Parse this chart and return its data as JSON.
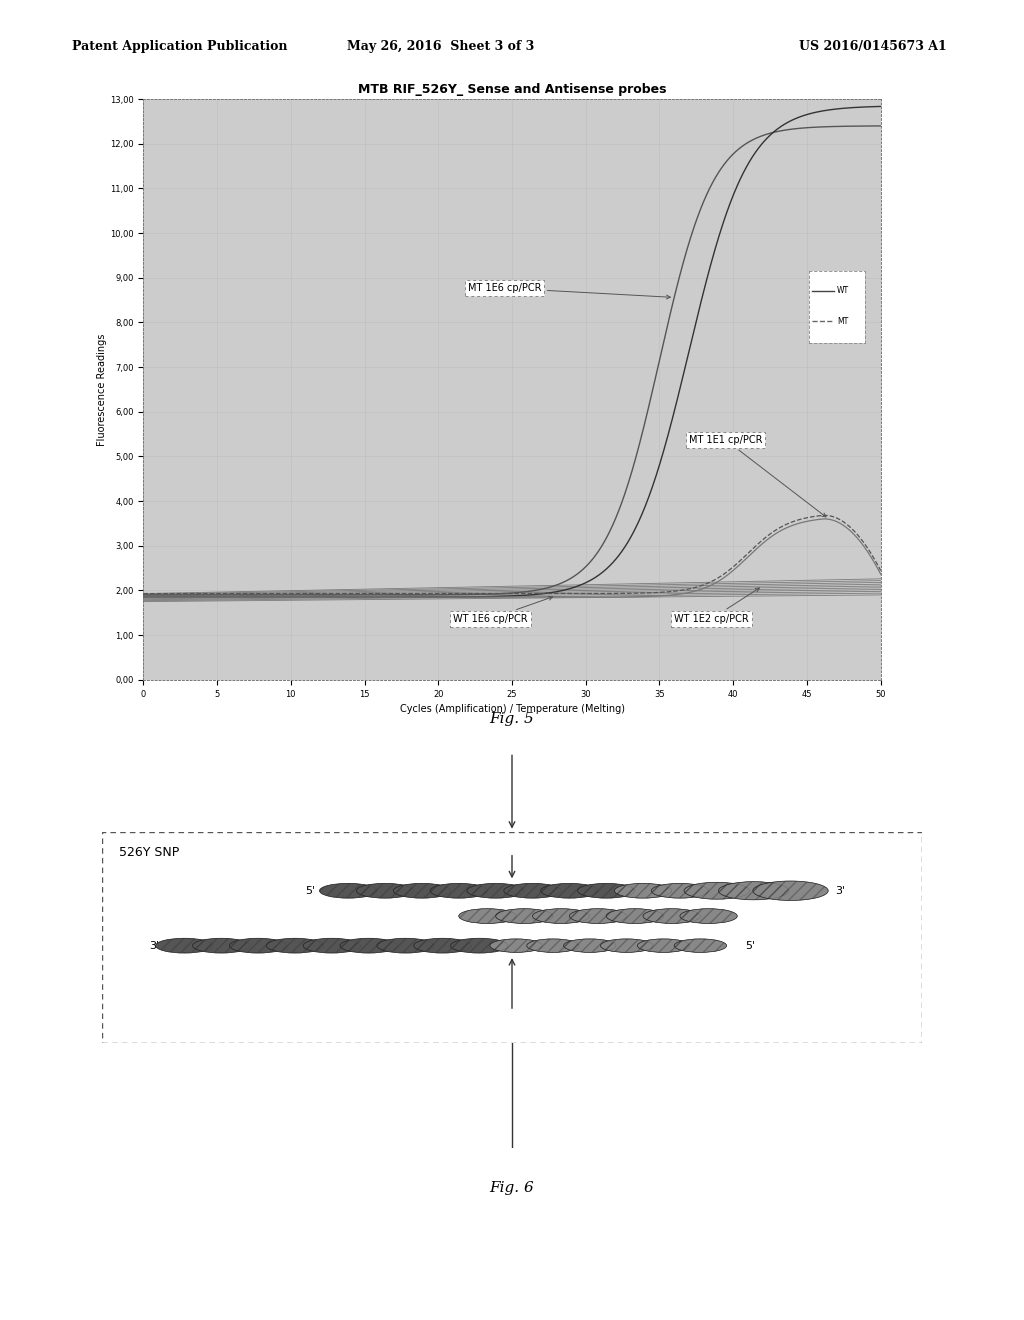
{
  "header_left": "Patent Application Publication",
  "header_center": "May 26, 2016  Sheet 3 of 3",
  "header_right": "US 2016/0145673 A1",
  "fig5_title": "MTB RIF_526Y_ Sense and Antisense probes",
  "fig5_xlabel": "Cycles (Amplification) / Temperature (Melting)",
  "fig5_ylabel": "Fluorescence Readings",
  "fig5_xlim": [
    0,
    50
  ],
  "fig5_ylim": [
    0,
    13000
  ],
  "fig5_yticks": [
    0,
    1000,
    2000,
    3000,
    4000,
    5000,
    6000,
    7000,
    8000,
    9000,
    10000,
    11000,
    12000,
    13000
  ],
  "fig5_xticks": [
    0,
    5,
    10,
    15,
    20,
    25,
    30,
    35,
    40,
    45,
    50
  ],
  "fig5_label1": "MT 1E6 cp/PCR",
  "fig5_label2": "MT 1E1 cp/PCR",
  "fig5_label3": "WT 1E6 cp/PCR",
  "fig5_label4": "WT 1E2 cp/PCR",
  "fig6_label": "526Y SNP",
  "fig_caption1": "Fig. 5",
  "fig_caption2": "Fig. 6",
  "bg_color": "#cccccc",
  "page_bg": "#ffffff",
  "grid_color": "#bbbbbb",
  "line_dark": "#333333",
  "line_mid": "#666666",
  "line_light": "#999999"
}
